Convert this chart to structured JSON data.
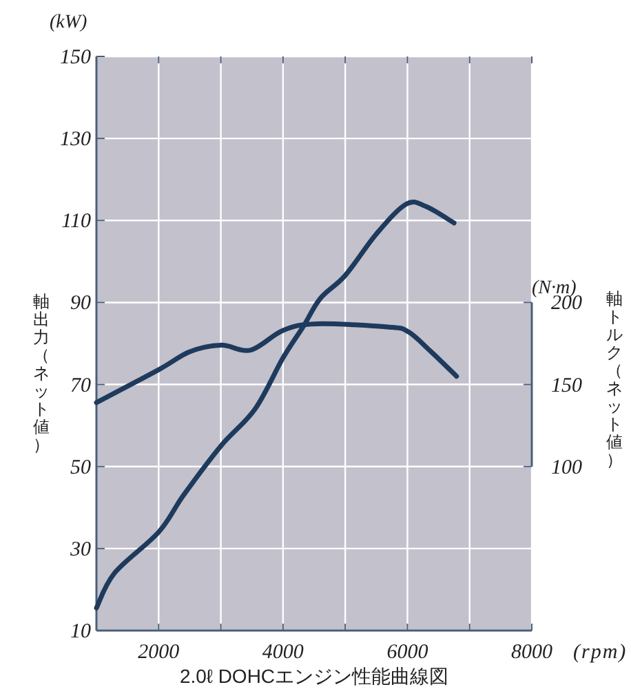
{
  "chart_data": {
    "type": "line",
    "title": "2.0ℓ DOHCエンジン性能曲線図",
    "xlabel": "(rpm)",
    "ylabel": "軸出力（ネット値）",
    "y2label": "軸トルク（ネット値）",
    "annotations": [
      "(kW)",
      "(N·m)"
    ],
    "xlim": [
      1000,
      8000
    ],
    "xticks": [
      {
        "value": 1000,
        "label": null
      },
      2000,
      {
        "value": 3000,
        "label": null
      },
      4000,
      {
        "value": 5000,
        "label": null
      },
      6000,
      {
        "value": 7000,
        "label": null
      },
      8000
    ],
    "ylim": [
      10,
      150
    ],
    "yticks": [
      10,
      30,
      50,
      70,
      90,
      110,
      130,
      150
    ],
    "y2lim": [
      0,
      350
    ],
    "y2ticks": [
      100,
      150,
      200
    ],
    "grid": true,
    "line_style": "solid",
    "series": [
      {
        "color": "#1e3a5c",
        "x": [
          1000,
          1290,
          2000,
          2400,
          3000,
          3550,
          4000,
          4320,
          4600,
          5000,
          5500,
          5980,
          6300,
          6750
        ],
        "values": [
          15.5,
          24,
          34,
          43,
          55,
          64,
          76.5,
          84,
          91,
          96.6,
          106.7,
          114,
          113.4,
          109.4
        ]
      },
      {
        "color": "#1e3a5c",
        "axis": "y2",
        "x": [
          1000,
          2000,
          2500,
          3000,
          3480,
          4000,
          4540,
          5710,
          6020,
          6380,
          6790
        ],
        "values": [
          139,
          159,
          170,
          174,
          171,
          183,
          187,
          185,
          182,
          170,
          155
        ]
      }
    ]
  }
}
